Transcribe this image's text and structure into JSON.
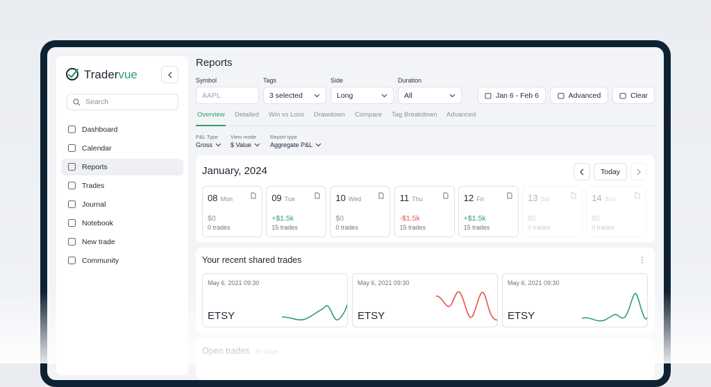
{
  "brand": {
    "first": "Trader",
    "second": "vue"
  },
  "sidebar": {
    "search": "Search",
    "nav": [
      "Dashboard",
      "Calendar",
      "Reports",
      "Trades",
      "Journal",
      "Notebook",
      "New trade",
      "Community"
    ]
  },
  "header": {
    "title": "Reports"
  },
  "filters": [
    {
      "label": "Symbol",
      "value": "AAPL"
    },
    {
      "label": "Tags",
      "value": "3 selected"
    },
    {
      "label": "Side",
      "value": "Long"
    },
    {
      "label": "Duration",
      "value": "All"
    }
  ],
  "buttons": [
    "Jan 6 - Feb 6",
    "Advanced",
    "Clear"
  ],
  "tabs": [
    "Overview",
    "Detailed",
    "Win vs Loss",
    "Drawdown",
    "Compare",
    "Tag Breakdown",
    "Advanced"
  ],
  "options": [
    {
      "label": "P&L Type",
      "value": "Gross"
    },
    {
      "label": "View mode",
      "value": "$ Value"
    },
    {
      "label": "Report type",
      "value": "Aggregate P&L"
    }
  ],
  "calendar": {
    "title": "January, 2024",
    "today": "Today",
    "days": [
      {
        "date": "08",
        "weekday": "Mon",
        "pnl": "$0",
        "trades": "0 trades"
      },
      {
        "date": "09",
        "weekday": "Tue",
        "pnl": "+$1.5k",
        "trades": "15 trades"
      },
      {
        "date": "10",
        "weekday": "Wed",
        "pnl": "$0",
        "trades": "0 trades"
      },
      {
        "date": "11",
        "weekday": "Thu",
        "pnl": "-$1.5k",
        "trades": "15 trades"
      },
      {
        "date": "12",
        "weekday": "Fri",
        "pnl": "+$1.5k",
        "trades": "15 trades"
      },
      {
        "date": "13",
        "weekday": "Sat",
        "pnl": "$0",
        "trades": "0 trades"
      },
      {
        "date": "14",
        "weekday": "Sun",
        "pnl": "$0",
        "trades": "0 trades"
      }
    ]
  },
  "shared": {
    "title": "Your recent shared trades",
    "trades": [
      {
        "time": "May 6, 2021 09:30",
        "symbol": "ETSY"
      },
      {
        "time": "May 6, 2021 09:30",
        "symbol": "ETSY"
      },
      {
        "time": "May 6, 2021 09:30",
        "symbol": "ETSY"
      }
    ]
  },
  "open_trades": {
    "title": "Open trades",
    "period": "30 days"
  }
}
